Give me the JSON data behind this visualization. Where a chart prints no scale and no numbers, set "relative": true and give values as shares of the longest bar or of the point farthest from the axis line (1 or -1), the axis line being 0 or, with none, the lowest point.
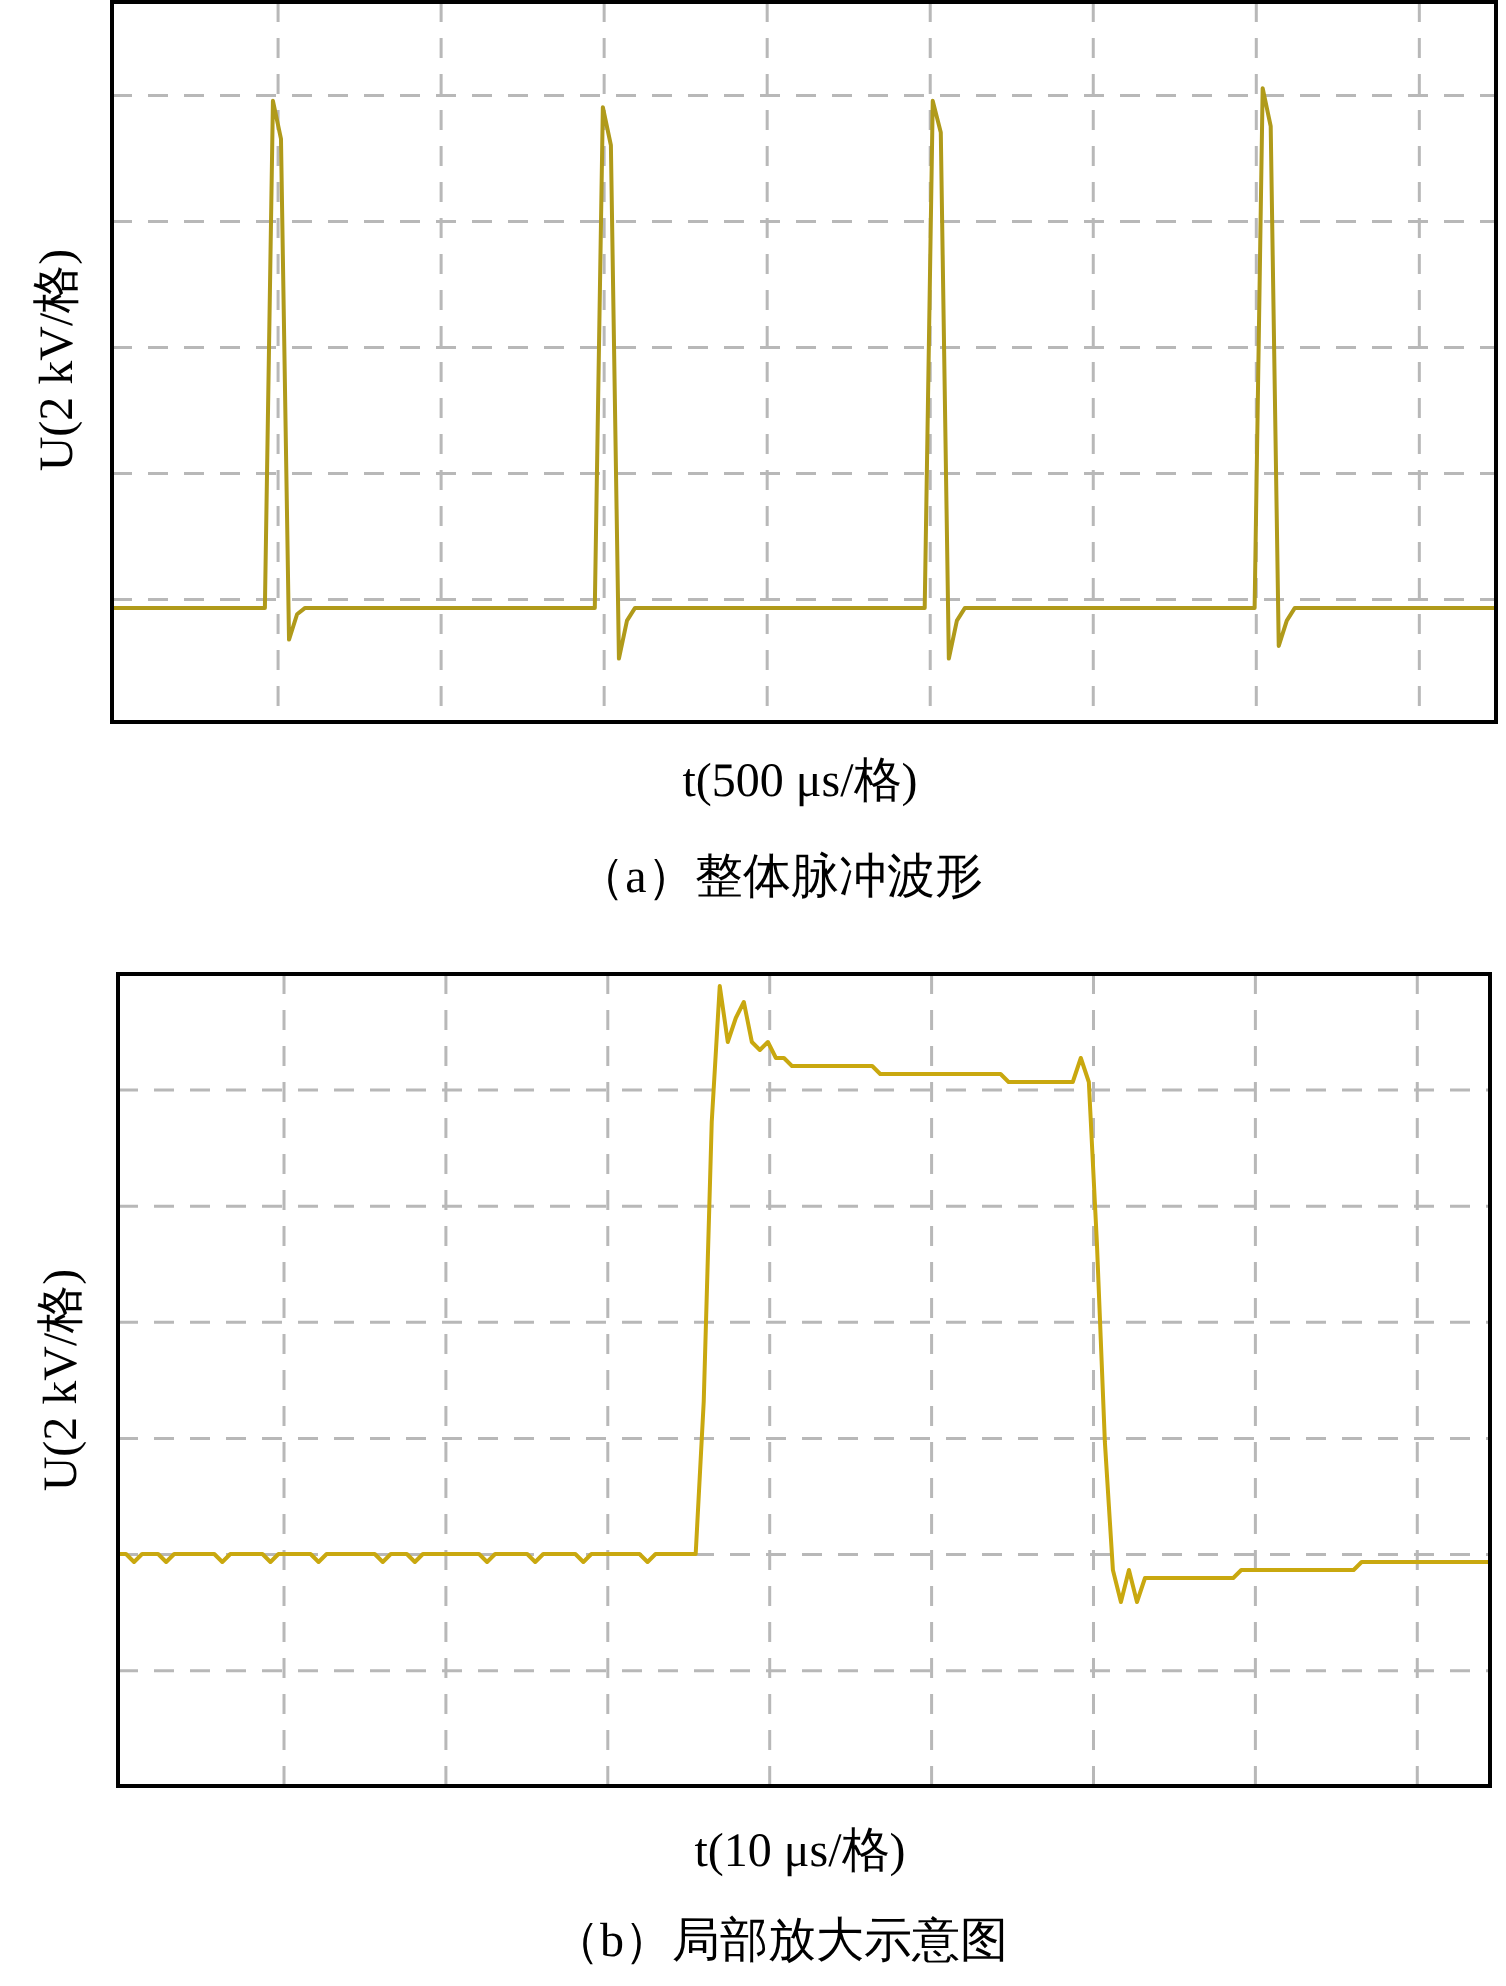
{
  "chart_data": [
    {
      "type": "line",
      "title": "（a）整体脉冲波形",
      "xlabel": "t(500 μs/格)",
      "ylabel": "U(2 kV/格)",
      "relative": true,
      "grid": true,
      "categories": [
        null,
        null,
        null,
        null,
        null,
        null,
        null,
        null,
        null,
        null,
        null,
        null,
        null,
        null,
        null,
        null,
        null,
        null,
        null,
        null,
        null,
        null,
        null,
        null,
        null,
        null,
        null,
        null,
        null,
        null,
        null,
        null,
        null,
        null,
        null,
        null,
        null,
        null,
        null,
        null,
        null,
        null,
        null,
        null,
        null,
        null,
        null,
        null,
        null,
        null,
        null,
        null,
        null,
        null,
        null,
        null,
        null,
        null,
        null,
        null,
        null,
        null,
        null,
        null,
        null,
        null,
        null,
        null,
        null,
        null,
        null,
        null,
        null,
        null,
        null,
        null,
        null,
        null,
        null,
        null,
        null,
        null,
        null,
        null,
        null,
        null,
        null,
        null,
        null,
        null,
        null,
        null,
        null,
        null,
        null,
        null,
        null,
        null,
        null,
        null,
        null,
        null,
        null,
        null,
        null,
        null,
        null,
        null,
        null,
        null,
        null,
        null,
        null,
        null,
        null,
        null,
        null,
        null,
        null,
        null,
        null,
        null,
        null,
        null,
        null,
        null,
        null,
        null,
        null,
        null,
        null,
        null,
        null,
        null,
        null,
        null,
        null,
        null,
        null,
        null,
        null,
        null,
        null,
        null,
        null,
        null,
        null,
        null,
        null,
        null,
        null,
        null,
        null,
        null,
        null,
        null,
        null,
        null,
        null,
        null,
        null,
        null,
        null,
        null,
        null,
        null,
        null,
        null,
        null,
        null,
        null,
        null,
        null
      ],
      "series": [
        {
          "color": "#b09a1a",
          "values": [
            0.18,
            0.18,
            0.18,
            0.18,
            0.18,
            0.18,
            0.18,
            0.18,
            0.18,
            0.18,
            0.18,
            0.18,
            0.18,
            0.18,
            0.18,
            0.18,
            0.18,
            0.18,
            0.18,
            0.18,
            0.98,
            0.92,
            0.13,
            0.17,
            0.18,
            0.18,
            0.18,
            0.18,
            0.18,
            0.18,
            0.18,
            0.18,
            0.18,
            0.18,
            0.18,
            0.18,
            0.18,
            0.18,
            0.18,
            0.18,
            0.18,
            0.18,
            0.18,
            0.18,
            0.18,
            0.18,
            0.18,
            0.18,
            0.18,
            0.18,
            0.18,
            0.18,
            0.18,
            0.18,
            0.18,
            0.18,
            0.18,
            0.18,
            0.18,
            0.18,
            0.18,
            0.97,
            0.91,
            0.1,
            0.16,
            0.18,
            0.18,
            0.18,
            0.18,
            0.18,
            0.18,
            0.18,
            0.18,
            0.18,
            0.18,
            0.18,
            0.18,
            0.18,
            0.18,
            0.18,
            0.18,
            0.18,
            0.18,
            0.18,
            0.18,
            0.18,
            0.18,
            0.18,
            0.18,
            0.18,
            0.18,
            0.18,
            0.18,
            0.18,
            0.18,
            0.18,
            0.18,
            0.18,
            0.18,
            0.18,
            0.18,
            0.18,
            0.98,
            0.93,
            0.1,
            0.16,
            0.18,
            0.18,
            0.18,
            0.18,
            0.18,
            0.18,
            0.18,
            0.18,
            0.18,
            0.18,
            0.18,
            0.18,
            0.18,
            0.18,
            0.18,
            0.18,
            0.18,
            0.18,
            0.18,
            0.18,
            0.18,
            0.18,
            0.18,
            0.18,
            0.18,
            0.18,
            0.18,
            0.18,
            0.18,
            0.18,
            0.18,
            0.18,
            0.18,
            0.18,
            0.18,
            0.18,
            0.18,
            1.0,
            0.94,
            0.12,
            0.16,
            0.18,
            0.18,
            0.18,
            0.18,
            0.18,
            0.18,
            0.18,
            0.18,
            0.18,
            0.18,
            0.18,
            0.18,
            0.18,
            0.18,
            0.18,
            0.18,
            0.18,
            0.18,
            0.18,
            0.18,
            0.18,
            0.18,
            0.18,
            0.18,
            0.18,
            0.18
          ]
        }
      ]
    },
    {
      "type": "line",
      "title": "（b）局部放大示意图",
      "xlabel": "t(10 μs/格)",
      "ylabel": "U(2 kV/格)",
      "relative": true,
      "grid": true,
      "categories": [
        null,
        null,
        null,
        null,
        null,
        null,
        null,
        null,
        null,
        null,
        null,
        null,
        null,
        null,
        null,
        null,
        null,
        null,
        null,
        null,
        null,
        null,
        null,
        null,
        null,
        null,
        null,
        null,
        null,
        null,
        null,
        null,
        null,
        null,
        null,
        null,
        null,
        null,
        null,
        null,
        null,
        null,
        null,
        null,
        null,
        null,
        null,
        null,
        null,
        null,
        null,
        null,
        null,
        null,
        null,
        null,
        null,
        null,
        null,
        null,
        null,
        null,
        null,
        null,
        null,
        null,
        null,
        null,
        null,
        null,
        null,
        null,
        null,
        null,
        null,
        null,
        null,
        null,
        null,
        null,
        null,
        null,
        null,
        null,
        null,
        null,
        null,
        null,
        null,
        null,
        null,
        null,
        null,
        null,
        null,
        null,
        null,
        null,
        null,
        null,
        null,
        null,
        null,
        null,
        null,
        null,
        null,
        null,
        null,
        null,
        null,
        null,
        null,
        null,
        null,
        null,
        null,
        null,
        null,
        null,
        null,
        null,
        null,
        null,
        null,
        null,
        null,
        null,
        null,
        null,
        null,
        null,
        null,
        null,
        null,
        null,
        null,
        null,
        null,
        null,
        null,
        null,
        null,
        null,
        null,
        null,
        null,
        null,
        null,
        null,
        null,
        null,
        null,
        null,
        null,
        null,
        null,
        null,
        null,
        null,
        null,
        null,
        null,
        null,
        null,
        null,
        null,
        null,
        null,
        null,
        null,
        null
      ],
      "series": [
        {
          "color": "#c9a80f",
          "values": [
            0.29,
            0.29,
            0.28,
            0.29,
            0.29,
            0.29,
            0.28,
            0.29,
            0.29,
            0.29,
            0.29,
            0.29,
            0.29,
            0.28,
            0.29,
            0.29,
            0.29,
            0.29,
            0.29,
            0.28,
            0.29,
            0.29,
            0.29,
            0.29,
            0.29,
            0.28,
            0.29,
            0.29,
            0.29,
            0.29,
            0.29,
            0.29,
            0.29,
            0.28,
            0.29,
            0.29,
            0.29,
            0.28,
            0.29,
            0.29,
            0.29,
            0.29,
            0.29,
            0.29,
            0.29,
            0.29,
            0.28,
            0.29,
            0.29,
            0.29,
            0.29,
            0.29,
            0.28,
            0.29,
            0.29,
            0.29,
            0.29,
            0.29,
            0.28,
            0.29,
            0.29,
            0.29,
            0.29,
            0.29,
            0.29,
            0.29,
            0.28,
            0.29,
            0.29,
            0.29,
            0.29,
            0.29,
            0.29,
            0.48,
            0.83,
            1.0,
            0.93,
            0.96,
            0.98,
            0.93,
            0.92,
            0.93,
            0.91,
            0.91,
            0.9,
            0.9,
            0.9,
            0.9,
            0.9,
            0.9,
            0.9,
            0.9,
            0.9,
            0.9,
            0.9,
            0.89,
            0.89,
            0.89,
            0.89,
            0.89,
            0.89,
            0.89,
            0.89,
            0.89,
            0.89,
            0.89,
            0.89,
            0.89,
            0.89,
            0.89,
            0.89,
            0.88,
            0.88,
            0.88,
            0.88,
            0.88,
            0.88,
            0.88,
            0.88,
            0.88,
            0.91,
            0.88,
            0.68,
            0.43,
            0.27,
            0.23,
            0.27,
            0.23,
            0.26,
            0.26,
            0.26,
            0.26,
            0.26,
            0.26,
            0.26,
            0.26,
            0.26,
            0.26,
            0.26,
            0.26,
            0.27,
            0.27,
            0.27,
            0.27,
            0.27,
            0.27,
            0.27,
            0.27,
            0.27,
            0.27,
            0.27,
            0.27,
            0.27,
            0.27,
            0.27,
            0.28,
            0.28,
            0.28,
            0.28,
            0.28,
            0.28,
            0.28,
            0.28,
            0.28,
            0.28,
            0.28,
            0.28,
            0.28,
            0.28,
            0.28,
            0.28,
            0.28
          ]
        }
      ]
    }
  ]
}
